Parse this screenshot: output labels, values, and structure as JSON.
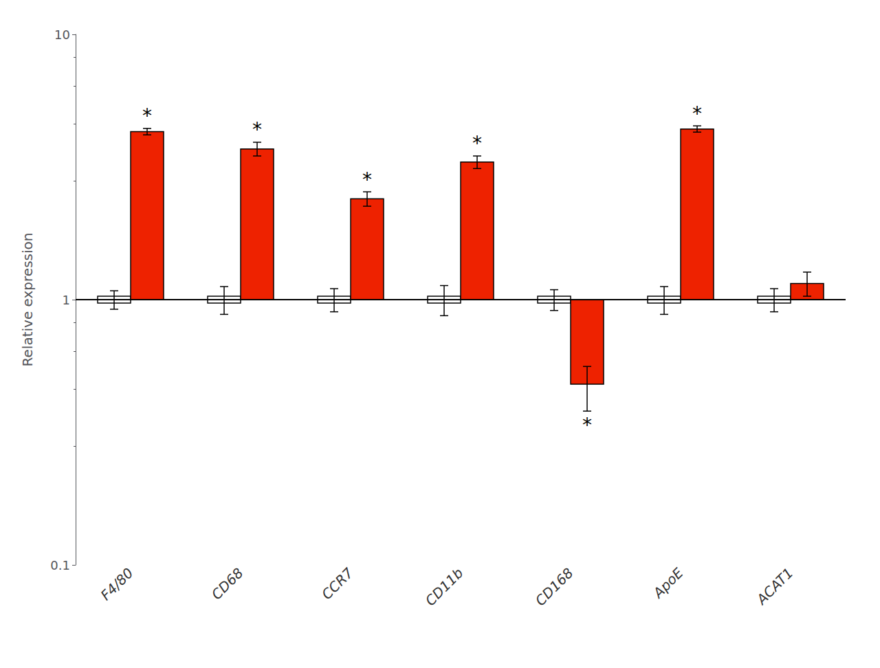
{
  "chart_data": {
    "type": "bar",
    "categories": [
      "F4/80",
      "CD68",
      "CCR7",
      "CD11b",
      "CD168",
      "ApoE",
      "ACAT1"
    ],
    "series": [
      {
        "color": "#ffffff",
        "values": [
          1.0,
          1.0,
          1.0,
          1.0,
          1.0,
          1.0,
          1.0
        ],
        "errors": [
          0.08,
          0.12,
          0.1,
          0.13,
          0.09,
          0.12,
          0.1
        ]
      },
      {
        "color": "#ee2200",
        "values": [
          4.3,
          3.7,
          2.4,
          3.3,
          0.48,
          4.4,
          1.15
        ],
        "errors_up": [
          0.12,
          0.22,
          0.15,
          0.18,
          0.08,
          0.12,
          0.12
        ],
        "errors_down": [
          0.12,
          0.22,
          0.15,
          0.18,
          0.1,
          0.12,
          0.12
        ]
      }
    ],
    "edge_color": "#000000",
    "baseline": 1,
    "ylabel": "Relative expression",
    "log": "y",
    "ylim": [
      0.1,
      10
    ],
    "yticks": [
      0.1,
      1,
      10
    ],
    "grid": false,
    "legend": false,
    "annotations": [
      {
        "text": "*",
        "category": "F4/80",
        "side": "above"
      },
      {
        "text": "*",
        "category": "CD68",
        "side": "above"
      },
      {
        "text": "*",
        "category": "CCR7",
        "side": "above"
      },
      {
        "text": "*",
        "category": "CD11b",
        "side": "above"
      },
      {
        "text": "*",
        "category": "CD168",
        "side": "below"
      },
      {
        "text": "*",
        "category": "ApoE",
        "side": "above"
      }
    ]
  }
}
